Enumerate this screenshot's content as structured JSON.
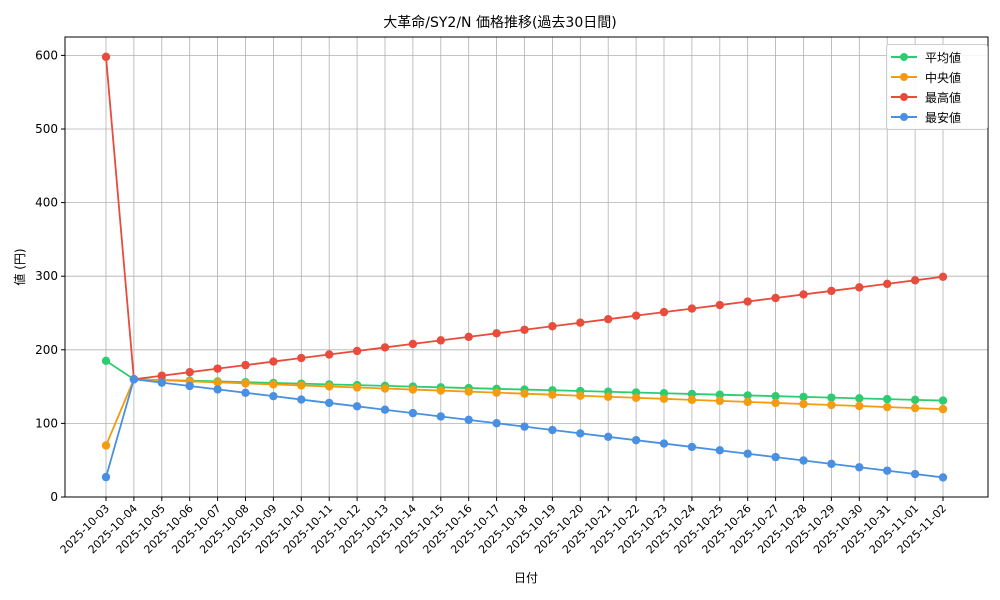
{
  "chart_data": {
    "type": "line",
    "title": "大革命/SY2/N 価格推移(過去30日間)",
    "xlabel": "日付",
    "ylabel": "値 (円)",
    "ylim": [
      0,
      625
    ],
    "yticks": [
      0,
      100,
      200,
      300,
      400,
      500,
      600
    ],
    "grid": true,
    "legend_position": "upper right",
    "x": [
      "2025-10-03",
      "2025-10-04",
      "2025-10-05",
      "2025-10-06",
      "2025-10-07",
      "2025-10-08",
      "2025-10-09",
      "2025-10-10",
      "2025-10-11",
      "2025-10-12",
      "2025-10-13",
      "2025-10-14",
      "2025-10-15",
      "2025-10-16",
      "2025-10-17",
      "2025-10-18",
      "2025-10-19",
      "2025-10-20",
      "2025-10-21",
      "2025-10-22",
      "2025-10-23",
      "2025-10-24",
      "2025-10-25",
      "2025-10-26",
      "2025-10-27",
      "2025-10-28",
      "2025-10-29",
      "2025-10-30",
      "2025-10-31",
      "2025-11-01",
      "2025-11-02"
    ],
    "series": [
      {
        "name": "平均値",
        "color": "#2ecc71",
        "values": [
          185,
          160,
          159,
          158,
          157,
          156,
          155,
          154,
          153,
          152,
          151,
          150,
          149,
          148,
          147,
          146,
          145,
          144,
          143,
          142,
          141,
          140,
          139,
          138,
          137,
          136,
          135,
          134,
          133,
          132,
          131
        ]
      },
      {
        "name": "中央値",
        "color": "#f39c12",
        "values": [
          70,
          160,
          158.6,
          157.2,
          155.8,
          154.4,
          153,
          151.6,
          150.2,
          148.8,
          147.4,
          146,
          144.6,
          143.2,
          141.8,
          140.4,
          139,
          137.6,
          136.2,
          134.8,
          133.4,
          132,
          130.6,
          129.2,
          127.8,
          126.4,
          125,
          123.6,
          122.2,
          120.8,
          119.4
        ]
      },
      {
        "name": "最高値",
        "color": "#e74c3c",
        "values": [
          598,
          160,
          164.8,
          169.6,
          174.4,
          179.2,
          184,
          188.8,
          193.6,
          198.4,
          203.2,
          208,
          212.8,
          217.6,
          222.4,
          227.2,
          232,
          236.8,
          241.6,
          246.4,
          251.2,
          256,
          260.8,
          265.6,
          270.4,
          275.2,
          280,
          284.8,
          289.6,
          294.4,
          299.2
        ]
      },
      {
        "name": "最安値",
        "color": "#4a90e2",
        "values": [
          27,
          160,
          155.4,
          150.8,
          146.2,
          141.6,
          137,
          132.4,
          127.8,
          123.2,
          118.6,
          114,
          109.4,
          104.8,
          100.2,
          95.6,
          91,
          86.4,
          81.8,
          77.2,
          72.6,
          68,
          63.4,
          58.8,
          54.2,
          49.6,
          45,
          40.4,
          35.8,
          31.2,
          26.6
        ]
      }
    ]
  }
}
